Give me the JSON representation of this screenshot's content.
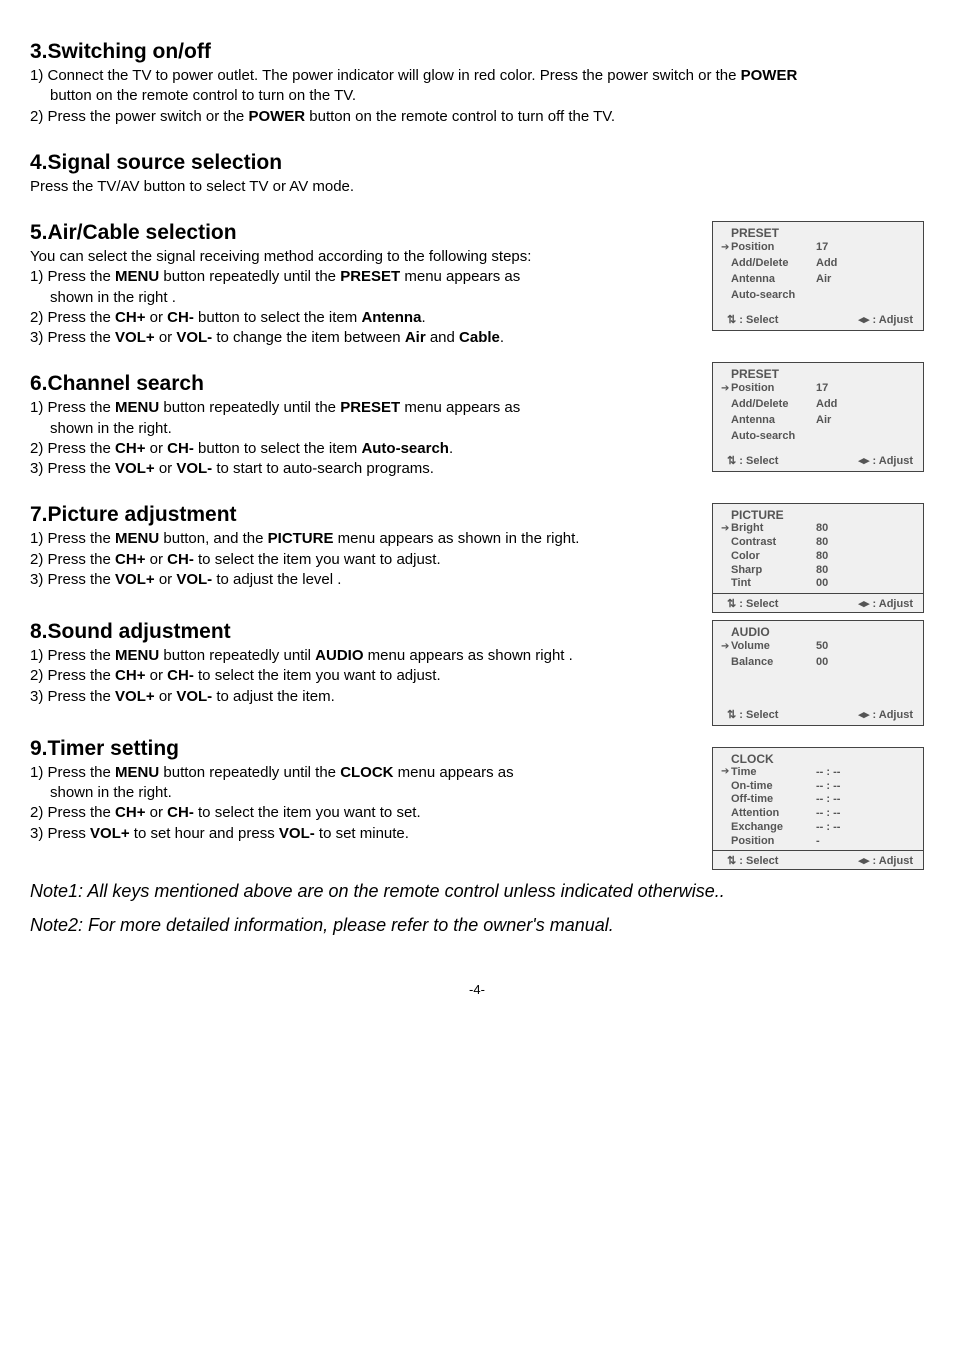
{
  "sections": {
    "s3": {
      "heading": "3.Switching on/off",
      "line1a": "1) Connect the TV  to power outlet. The power indicator will glow in   red   color. Press the power switch or the ",
      "line1b": "POWER",
      "line1c": "button on the remote control to turn on the TV.",
      "line2a": "2) Press the power switch or the ",
      "line2b": "POWER",
      "line2c": " button on the remote control to turn off the TV."
    },
    "s4": {
      "heading": "4.Signal source selection",
      "line1": "Press the TV/AV button to select TV or AV mode."
    },
    "s5": {
      "heading": "5.Air/Cable selection",
      "line0": "You can select the signal receiving method according to the following steps:",
      "line1a": "1) Press the ",
      "line1b": "MENU",
      "line1c": " button repeatedly until the ",
      "line1d": "PRESET",
      "line1e": " menu appears as",
      "line1f": "shown in the right .",
      "line2a": "2) Press the ",
      "line2b": "CH+",
      "line2c": " or ",
      "line2d": "CH-",
      "line2e": " button to select the item ",
      "line2f": "Antenna",
      "line2g": ".",
      "line3a": "3) Press the ",
      "line3b": "VOL+",
      "line3c": " or ",
      "line3d": "VOL-",
      "line3e": " to change the item between ",
      "line3f": "Air",
      "line3g": " and ",
      "line3h": "Cable",
      "line3i": "."
    },
    "s6": {
      "heading": "6.Channel search",
      "line1a": "1) Press the ",
      "line1b": "MENU",
      "line1c": " button repeatedly until the ",
      "line1d": "PRESET",
      "line1e": " menu appears as",
      "line1f": "shown in the right.",
      "line2a": "2) Press the ",
      "line2b": "CH+",
      "line2c": " or ",
      "line2d": "CH-",
      "line2e": " button to select the item ",
      "line2f": "Auto-search",
      "line2g": ".",
      "line3a": "3) Press the ",
      "line3b": "VOL+",
      "line3c": " or ",
      "line3d": "VOL-",
      "line3e": " to start to auto-search programs."
    },
    "s7": {
      "heading": "7.Picture adjustment",
      "line1a": "1) Press the ",
      "line1b": "MENU",
      "line1c": " button, and the ",
      "line1d": "PICTURE",
      "line1e": " menu appears as  shown in the right.",
      "line2a": "2) Press the ",
      "line2b": "CH+",
      "line2c": " or ",
      "line2d": "CH-",
      "line2e": "  to select the item you want to adjust.",
      "line3a": "3) Press  the ",
      "line3b": "VOL+",
      "line3c": " or ",
      "line3d": "VOL-",
      "line3e": " to adjust the level ."
    },
    "s8": {
      "heading": "8.Sound adjustment",
      "line1a": "1) Press the ",
      "line1b": "MENU",
      "line1c": " button repeatedly until ",
      "line1d": "AUDIO",
      "line1e": " menu appears as  shown right .",
      "line2a": "2) Press the ",
      "line2b": "CH+",
      "line2c": " or ",
      "line2d": "CH-",
      "line2e": " to select the item you want to   adjust.",
      "line3a": "3) Press  the ",
      "line3b": "VOL+",
      "line3c": " or ",
      "line3d": "VOL-",
      "line3e": " to adjust the item."
    },
    "s9": {
      "heading": "9.Timer setting",
      "line1a": "1) Press the ",
      "line1b": "MENU",
      "line1c": " button repeatedly until the ",
      "line1d": "CLOCK",
      "line1e": " menu appears as",
      "line1f": "shown in the right.",
      "line2a": "2) Press the ",
      "line2b": "CH+",
      "line2c": " or ",
      "line2d": "CH-",
      "line2e": " to select the item you want to set.",
      "line3a": "3) Press ",
      "line3b": "VOL+",
      "line3c": " to set hour and press ",
      "line3d": "VOL-",
      "line3e": " to set minute."
    }
  },
  "notes": {
    "n1": "Note1: All keys mentioned above are on the remote control unless indicated otherwise..",
    "n2": "Note2: For more detailed information, please refer to the owner's manual."
  },
  "pagenum": "-4-",
  "menus": {
    "preset": {
      "title": "PRESET",
      "rows": [
        {
          "arrow": "➔",
          "label": "Position",
          "val": "17"
        },
        {
          "arrow": "",
          "label": "Add/Delete",
          "val": "Add"
        },
        {
          "arrow": "",
          "label": "Antenna",
          "val": "Air"
        },
        {
          "arrow": "",
          "label": "Auto-search",
          "val": ""
        }
      ],
      "select": "⇅ : Select",
      "adjust": "◂▸ : Adjust"
    },
    "picture": {
      "title": "PICTURE",
      "rows": [
        {
          "arrow": "➔",
          "label": "Bright",
          "val": "80"
        },
        {
          "arrow": "",
          "label": "Contrast",
          "val": "80"
        },
        {
          "arrow": "",
          "label": "Color",
          "val": "80"
        },
        {
          "arrow": "",
          "label": "Sharp",
          "val": "80"
        },
        {
          "arrow": "",
          "label": "Tint",
          "val": "00"
        }
      ],
      "select": "⇅ : Select",
      "adjust": "◂▸ : Adjust"
    },
    "audio": {
      "title": "AUDIO",
      "rows": [
        {
          "arrow": "➔",
          "label": "Volume",
          "val": "50"
        },
        {
          "arrow": "",
          "label": "Balance",
          "val": "00"
        }
      ],
      "select": "⇅ : Select",
      "adjust": "◂▸ : Adjust"
    },
    "clock": {
      "title": "CLOCK",
      "rows": [
        {
          "arrow": "➔",
          "label": "Time",
          "val": "-- : --"
        },
        {
          "arrow": "",
          "label": "On-time",
          "val": "-- : --"
        },
        {
          "arrow": "",
          "label": "Off-time",
          "val": "-- : --"
        },
        {
          "arrow": "",
          "label": "Attention",
          "val": "-- : --"
        },
        {
          "arrow": "",
          "label": "Exchange",
          "val": "-- : --"
        },
        {
          "arrow": "",
          "label": "Position",
          "val": "-"
        }
      ],
      "select": "⇅ : Select",
      "adjust": "◂▸ : Adjust"
    }
  },
  "layout": {
    "menu_width": 210,
    "bg": "#f0f0f0",
    "text": "#555555"
  }
}
